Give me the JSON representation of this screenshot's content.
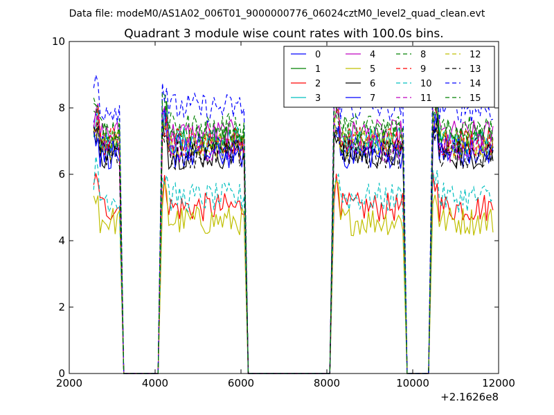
{
  "header": {
    "data_file_line": "Data file: modeM0/AS1A02_006T01_9000000776_06024cztM0_level2_quad_clean.evt"
  },
  "chart_data": {
    "type": "line",
    "title": "Quadrant 3 module wise count rates with 100.0s bins.",
    "xlabel": "",
    "ylabel": "",
    "x_offset_label": "+2.1626e8",
    "xlim": [
      2000,
      12000
    ],
    "ylim": [
      0,
      10
    ],
    "x_ticks": [
      2000,
      4000,
      6000,
      8000,
      10000,
      12000
    ],
    "x_tick_labels": [
      "2000",
      "4000",
      "6000",
      "8000",
      "10000",
      "12000"
    ],
    "y_ticks": [
      0,
      2,
      4,
      6,
      8,
      10
    ],
    "y_tick_labels": [
      "0",
      "2",
      "4",
      "6",
      "8",
      "10"
    ],
    "grid": false,
    "legend_position": "top-right",
    "segments": [
      {
        "start": 2570,
        "end": 3170
      },
      {
        "start": 4170,
        "end": 6070
      },
      {
        "start": 8170,
        "end": 9770
      },
      {
        "start": 10470,
        "end": 11870
      }
    ],
    "gaps": [
      {
        "x": [
          3170,
          3270,
          4070,
          4170
        ]
      },
      {
        "x": [
          6070,
          6170,
          8070,
          8170
        ]
      },
      {
        "x": [
          9770,
          9870,
          10370,
          10470
        ]
      }
    ],
    "series": [
      {
        "name": "0",
        "color": "#0000ff",
        "dashed": false,
        "level": 6.8
      },
      {
        "name": "1",
        "color": "#008000",
        "dashed": false,
        "level": 7.0
      },
      {
        "name": "2",
        "color": "#ff0000",
        "dashed": false,
        "level": 5.0
      },
      {
        "name": "3",
        "color": "#00bfbf",
        "dashed": false,
        "level": 7.0
      },
      {
        "name": "4",
        "color": "#bf00bf",
        "dashed": false,
        "level": 7.2
      },
      {
        "name": "5",
        "color": "#bfbf00",
        "dashed": false,
        "level": 4.6
      },
      {
        "name": "6",
        "color": "#000000",
        "dashed": false,
        "level": 6.6
      },
      {
        "name": "7",
        "color": "#0000ff",
        "dashed": false,
        "level": 6.6
      },
      {
        "name": "8",
        "color": "#008000",
        "dashed": true,
        "level": 7.2
      },
      {
        "name": "9",
        "color": "#ff0000",
        "dashed": true,
        "level": 7.0
      },
      {
        "name": "10",
        "color": "#00bfbf",
        "dashed": true,
        "level": 5.3
      },
      {
        "name": "11",
        "color": "#bf00bf",
        "dashed": true,
        "level": 6.8
      },
      {
        "name": "12",
        "color": "#bfbf00",
        "dashed": true,
        "level": 6.9
      },
      {
        "name": "13",
        "color": "#000000",
        "dashed": true,
        "level": 6.6
      },
      {
        "name": "14",
        "color": "#0000ff",
        "dashed": true,
        "level": 8.0
      },
      {
        "name": "15",
        "color": "#008000",
        "dashed": true,
        "level": 7.4
      }
    ],
    "notes": "Each series is ~flat at its level within active segments (+/- noise ~0.4), drops to 0 in gaps."
  }
}
